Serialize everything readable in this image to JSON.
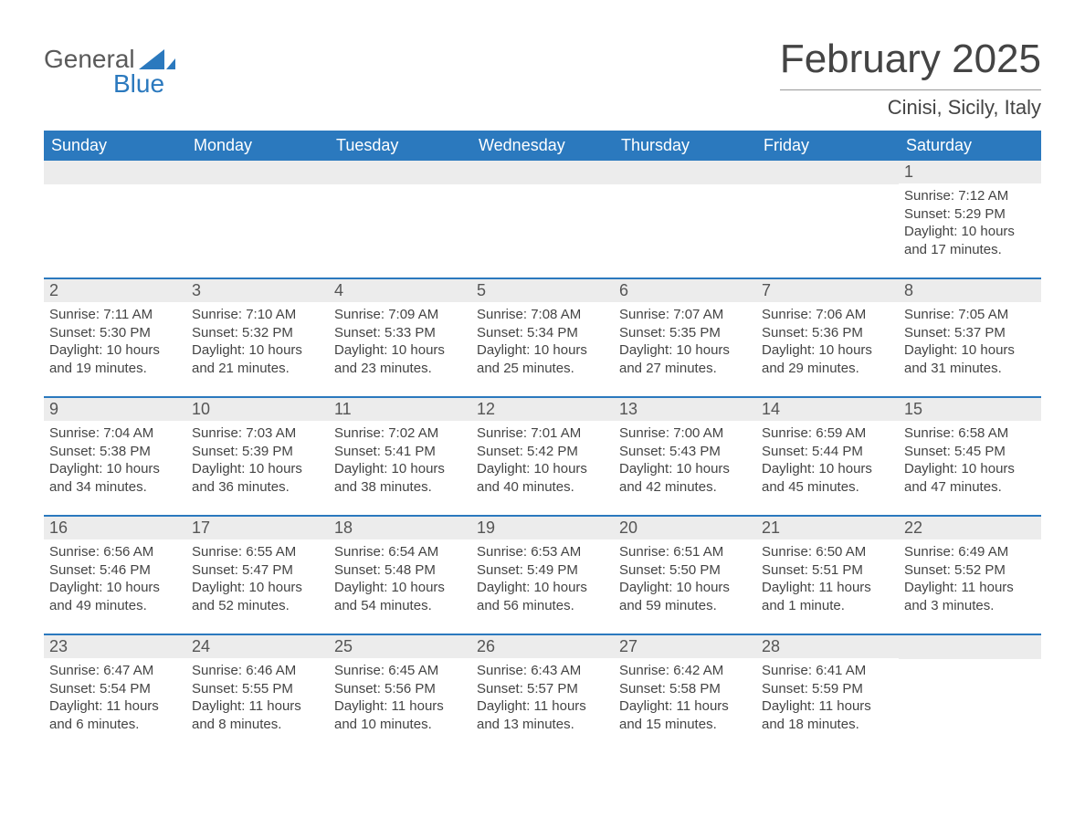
{
  "logo": {
    "text1": "General",
    "text2": "Blue",
    "shape_color": "#2b79be"
  },
  "header": {
    "month_title": "February 2025",
    "location": "Cinisi, Sicily, Italy",
    "title_color": "#444444",
    "title_fontsize": 44,
    "location_fontsize": 22
  },
  "colors": {
    "header_row_bg": "#2b79be",
    "header_row_text": "#ffffff",
    "daynum_bg": "#ececec",
    "daynum_text": "#555555",
    "body_text": "#444444",
    "week_border": "#2b79be",
    "page_bg": "#ffffff"
  },
  "fonts": {
    "body_size": 15,
    "day_header_size": 18,
    "daynum_size": 18
  },
  "day_names": [
    "Sunday",
    "Monday",
    "Tuesday",
    "Wednesday",
    "Thursday",
    "Friday",
    "Saturday"
  ],
  "weeks": [
    [
      null,
      null,
      null,
      null,
      null,
      null,
      {
        "day": "1",
        "sunrise": "Sunrise: 7:12 AM",
        "sunset": "Sunset: 5:29 PM",
        "daylight": "Daylight: 10 hours and 17 minutes."
      }
    ],
    [
      {
        "day": "2",
        "sunrise": "Sunrise: 7:11 AM",
        "sunset": "Sunset: 5:30 PM",
        "daylight": "Daylight: 10 hours and 19 minutes."
      },
      {
        "day": "3",
        "sunrise": "Sunrise: 7:10 AM",
        "sunset": "Sunset: 5:32 PM",
        "daylight": "Daylight: 10 hours and 21 minutes."
      },
      {
        "day": "4",
        "sunrise": "Sunrise: 7:09 AM",
        "sunset": "Sunset: 5:33 PM",
        "daylight": "Daylight: 10 hours and 23 minutes."
      },
      {
        "day": "5",
        "sunrise": "Sunrise: 7:08 AM",
        "sunset": "Sunset: 5:34 PM",
        "daylight": "Daylight: 10 hours and 25 minutes."
      },
      {
        "day": "6",
        "sunrise": "Sunrise: 7:07 AM",
        "sunset": "Sunset: 5:35 PM",
        "daylight": "Daylight: 10 hours and 27 minutes."
      },
      {
        "day": "7",
        "sunrise": "Sunrise: 7:06 AM",
        "sunset": "Sunset: 5:36 PM",
        "daylight": "Daylight: 10 hours and 29 minutes."
      },
      {
        "day": "8",
        "sunrise": "Sunrise: 7:05 AM",
        "sunset": "Sunset: 5:37 PM",
        "daylight": "Daylight: 10 hours and 31 minutes."
      }
    ],
    [
      {
        "day": "9",
        "sunrise": "Sunrise: 7:04 AM",
        "sunset": "Sunset: 5:38 PM",
        "daylight": "Daylight: 10 hours and 34 minutes."
      },
      {
        "day": "10",
        "sunrise": "Sunrise: 7:03 AM",
        "sunset": "Sunset: 5:39 PM",
        "daylight": "Daylight: 10 hours and 36 minutes."
      },
      {
        "day": "11",
        "sunrise": "Sunrise: 7:02 AM",
        "sunset": "Sunset: 5:41 PM",
        "daylight": "Daylight: 10 hours and 38 minutes."
      },
      {
        "day": "12",
        "sunrise": "Sunrise: 7:01 AM",
        "sunset": "Sunset: 5:42 PM",
        "daylight": "Daylight: 10 hours and 40 minutes."
      },
      {
        "day": "13",
        "sunrise": "Sunrise: 7:00 AM",
        "sunset": "Sunset: 5:43 PM",
        "daylight": "Daylight: 10 hours and 42 minutes."
      },
      {
        "day": "14",
        "sunrise": "Sunrise: 6:59 AM",
        "sunset": "Sunset: 5:44 PM",
        "daylight": "Daylight: 10 hours and 45 minutes."
      },
      {
        "day": "15",
        "sunrise": "Sunrise: 6:58 AM",
        "sunset": "Sunset: 5:45 PM",
        "daylight": "Daylight: 10 hours and 47 minutes."
      }
    ],
    [
      {
        "day": "16",
        "sunrise": "Sunrise: 6:56 AM",
        "sunset": "Sunset: 5:46 PM",
        "daylight": "Daylight: 10 hours and 49 minutes."
      },
      {
        "day": "17",
        "sunrise": "Sunrise: 6:55 AM",
        "sunset": "Sunset: 5:47 PM",
        "daylight": "Daylight: 10 hours and 52 minutes."
      },
      {
        "day": "18",
        "sunrise": "Sunrise: 6:54 AM",
        "sunset": "Sunset: 5:48 PM",
        "daylight": "Daylight: 10 hours and 54 minutes."
      },
      {
        "day": "19",
        "sunrise": "Sunrise: 6:53 AM",
        "sunset": "Sunset: 5:49 PM",
        "daylight": "Daylight: 10 hours and 56 minutes."
      },
      {
        "day": "20",
        "sunrise": "Sunrise: 6:51 AM",
        "sunset": "Sunset: 5:50 PM",
        "daylight": "Daylight: 10 hours and 59 minutes."
      },
      {
        "day": "21",
        "sunrise": "Sunrise: 6:50 AM",
        "sunset": "Sunset: 5:51 PM",
        "daylight": "Daylight: 11 hours and 1 minute."
      },
      {
        "day": "22",
        "sunrise": "Sunrise: 6:49 AM",
        "sunset": "Sunset: 5:52 PM",
        "daylight": "Daylight: 11 hours and 3 minutes."
      }
    ],
    [
      {
        "day": "23",
        "sunrise": "Sunrise: 6:47 AM",
        "sunset": "Sunset: 5:54 PM",
        "daylight": "Daylight: 11 hours and 6 minutes."
      },
      {
        "day": "24",
        "sunrise": "Sunrise: 6:46 AM",
        "sunset": "Sunset: 5:55 PM",
        "daylight": "Daylight: 11 hours and 8 minutes."
      },
      {
        "day": "25",
        "sunrise": "Sunrise: 6:45 AM",
        "sunset": "Sunset: 5:56 PM",
        "daylight": "Daylight: 11 hours and 10 minutes."
      },
      {
        "day": "26",
        "sunrise": "Sunrise: 6:43 AM",
        "sunset": "Sunset: 5:57 PM",
        "daylight": "Daylight: 11 hours and 13 minutes."
      },
      {
        "day": "27",
        "sunrise": "Sunrise: 6:42 AM",
        "sunset": "Sunset: 5:58 PM",
        "daylight": "Daylight: 11 hours and 15 minutes."
      },
      {
        "day": "28",
        "sunrise": "Sunrise: 6:41 AM",
        "sunset": "Sunset: 5:59 PM",
        "daylight": "Daylight: 11 hours and 18 minutes."
      },
      null
    ]
  ]
}
